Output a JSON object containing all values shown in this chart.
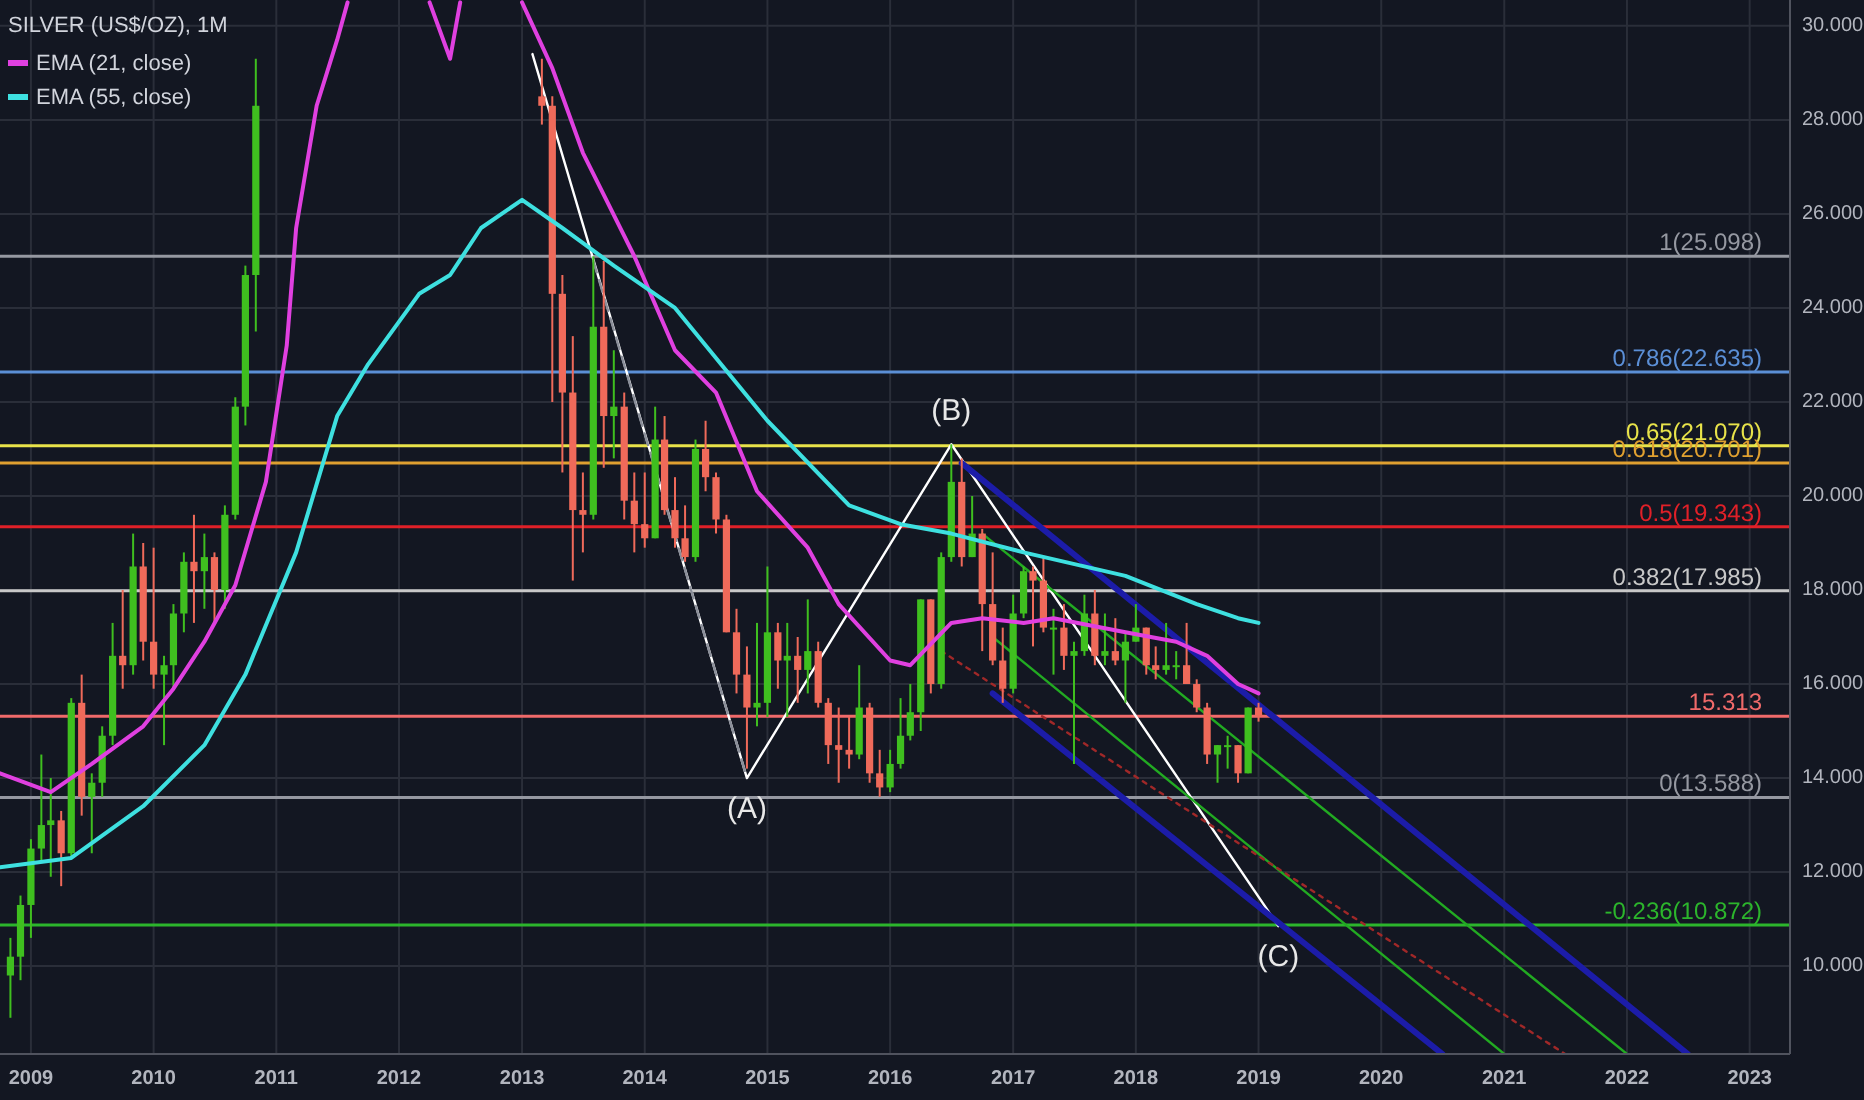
{
  "chart_data": {
    "type": "candlestick",
    "title": "SILVER (US$/OZ), 1M",
    "legend": "top left",
    "grid": true,
    "x": [
      "2008-11",
      "2008-12",
      "2009-01",
      "2009-02",
      "2009-03",
      "2009-04",
      "2009-05",
      "2009-06",
      "2009-07",
      "2009-08",
      "2009-09",
      "2009-10",
      "2009-11",
      "2009-12",
      "2010-01",
      "2010-02",
      "2010-03",
      "2010-04",
      "2010-05",
      "2010-06",
      "2010-07",
      "2010-08",
      "2010-09",
      "2010-10",
      "2010-11",
      "2013-03",
      "2013-04",
      "2013-05",
      "2013-06",
      "2013-07",
      "2013-08",
      "2013-09",
      "2013-10",
      "2013-11",
      "2013-12",
      "2014-01",
      "2014-02",
      "2014-03",
      "2014-04",
      "2014-05",
      "2014-06",
      "2014-07",
      "2014-08",
      "2014-09",
      "2014-10",
      "2014-11",
      "2014-12",
      "2015-01",
      "2015-02",
      "2015-03",
      "2015-04",
      "2015-05",
      "2015-06",
      "2015-07",
      "2015-08",
      "2015-09",
      "2015-10",
      "2015-11",
      "2015-12",
      "2016-01",
      "2016-02",
      "2016-03",
      "2016-04",
      "2016-05",
      "2016-06",
      "2016-07",
      "2016-08",
      "2016-09",
      "2016-10",
      "2016-11",
      "2016-12",
      "2017-01",
      "2017-02",
      "2017-03",
      "2017-04",
      "2017-05",
      "2017-06",
      "2017-07",
      "2017-08",
      "2017-09",
      "2017-10",
      "2017-11",
      "2017-12",
      "2018-01",
      "2018-02",
      "2018-03",
      "2018-04",
      "2018-05",
      "2018-06",
      "2018-07",
      "2018-08",
      "2018-09",
      "2018-10",
      "2018-11",
      "2018-12",
      "2019-01"
    ],
    "ohlc": [
      [
        9.8,
        10.6,
        8.9,
        10.2
      ],
      [
        10.2,
        11.5,
        9.7,
        11.3
      ],
      [
        11.3,
        12.7,
        10.6,
        12.5
      ],
      [
        12.5,
        14.5,
        12.2,
        13.0
      ],
      [
        13.0,
        14.0,
        11.9,
        13.1
      ],
      [
        13.1,
        13.3,
        11.7,
        12.4
      ],
      [
        12.4,
        15.7,
        12.3,
        15.6
      ],
      [
        15.6,
        16.2,
        13.2,
        13.6
      ],
      [
        13.6,
        14.1,
        12.4,
        13.9
      ],
      [
        13.9,
        15.1,
        13.6,
        14.9
      ],
      [
        14.9,
        17.3,
        14.7,
        16.6
      ],
      [
        16.6,
        18.0,
        15.9,
        16.4
      ],
      [
        16.4,
        19.2,
        16.2,
        18.5
      ],
      [
        18.5,
        19.0,
        16.5,
        16.9
      ],
      [
        16.9,
        18.9,
        15.9,
        16.2
      ],
      [
        16.2,
        16.6,
        14.7,
        16.4
      ],
      [
        16.4,
        17.7,
        15.9,
        17.5
      ],
      [
        17.5,
        18.8,
        17.1,
        18.6
      ],
      [
        18.6,
        19.6,
        17.3,
        18.4
      ],
      [
        18.4,
        19.2,
        17.6,
        18.7
      ],
      [
        18.7,
        18.8,
        17.3,
        18.0
      ],
      [
        18.0,
        19.8,
        17.6,
        19.6
      ],
      [
        19.6,
        22.1,
        19.5,
        21.9
      ],
      [
        21.9,
        24.9,
        21.5,
        24.7
      ],
      [
        24.7,
        29.3,
        23.5,
        28.3
      ],
      [
        28.5,
        29.3,
        27.9,
        28.3
      ],
      [
        28.3,
        28.5,
        22.0,
        24.3
      ],
      [
        24.3,
        24.7,
        20.5,
        22.2
      ],
      [
        22.2,
        23.4,
        18.2,
        19.7
      ],
      [
        19.7,
        20.5,
        18.8,
        19.6
      ],
      [
        19.6,
        25.1,
        19.5,
        23.6
      ],
      [
        23.6,
        25.0,
        20.6,
        21.7
      ],
      [
        21.7,
        23.1,
        20.8,
        21.9
      ],
      [
        21.9,
        22.2,
        19.5,
        19.9
      ],
      [
        19.9,
        20.5,
        18.8,
        19.4
      ],
      [
        19.4,
        20.5,
        18.9,
        19.1
      ],
      [
        19.1,
        21.9,
        19.1,
        21.2
      ],
      [
        21.2,
        21.7,
        19.6,
        19.7
      ],
      [
        19.7,
        20.4,
        18.9,
        19.1
      ],
      [
        19.1,
        19.8,
        18.6,
        18.7
      ],
      [
        18.7,
        21.2,
        18.6,
        21.0
      ],
      [
        21.0,
        21.6,
        20.1,
        20.4
      ],
      [
        20.4,
        20.5,
        19.2,
        19.5
      ],
      [
        19.5,
        19.6,
        17.1,
        17.1
      ],
      [
        17.1,
        17.6,
        15.8,
        16.2
      ],
      [
        16.2,
        16.8,
        14.2,
        15.5
      ],
      [
        15.5,
        17.3,
        15.1,
        15.6
      ],
      [
        15.6,
        18.5,
        15.3,
        17.1
      ],
      [
        17.1,
        17.3,
        15.9,
        16.5
      ],
      [
        16.5,
        17.3,
        15.3,
        16.6
      ],
      [
        16.6,
        17.0,
        15.6,
        16.3
      ],
      [
        16.3,
        17.8,
        15.8,
        16.7
      ],
      [
        16.7,
        16.9,
        15.5,
        15.6
      ],
      [
        15.6,
        15.7,
        14.3,
        14.7
      ],
      [
        14.7,
        15.5,
        13.9,
        14.6
      ],
      [
        14.6,
        15.3,
        14.2,
        14.5
      ],
      [
        14.5,
        16.4,
        14.4,
        15.5
      ],
      [
        15.5,
        15.6,
        13.9,
        14.1
      ],
      [
        14.1,
        14.6,
        13.6,
        13.8
      ],
      [
        13.8,
        14.6,
        13.7,
        14.3
      ],
      [
        14.3,
        15.7,
        14.2,
        14.9
      ],
      [
        14.9,
        16.0,
        14.8,
        15.4
      ],
      [
        15.4,
        17.8,
        15.0,
        17.8
      ],
      [
        17.8,
        17.8,
        15.8,
        16.0
      ],
      [
        16.0,
        18.8,
        15.9,
        18.7
      ],
      [
        18.7,
        21.1,
        18.6,
        20.3
      ],
      [
        20.3,
        20.8,
        18.5,
        18.7
      ],
      [
        18.7,
        20.0,
        18.7,
        19.2
      ],
      [
        19.2,
        19.3,
        16.7,
        17.7
      ],
      [
        17.7,
        18.8,
        16.4,
        16.5
      ],
      [
        16.5,
        17.2,
        15.6,
        15.9
      ],
      [
        15.9,
        17.9,
        15.8,
        17.5
      ],
      [
        17.5,
        18.5,
        17.4,
        18.4
      ],
      [
        18.4,
        18.5,
        16.8,
        18.2
      ],
      [
        18.2,
        18.7,
        17.1,
        17.2
      ],
      [
        17.2,
        17.6,
        16.2,
        17.2
      ],
      [
        17.2,
        17.7,
        16.3,
        16.6
      ],
      [
        16.6,
        16.9,
        14.3,
        16.7
      ],
      [
        16.7,
        17.9,
        16.6,
        17.5
      ],
      [
        17.5,
        18.0,
        16.4,
        16.6
      ],
      [
        16.6,
        17.5,
        16.4,
        16.7
      ],
      [
        16.7,
        17.4,
        16.4,
        16.5
      ],
      [
        16.5,
        17.1,
        15.6,
        16.9
      ],
      [
        16.9,
        17.7,
        16.9,
        17.2
      ],
      [
        17.2,
        17.2,
        16.2,
        16.4
      ],
      [
        16.4,
        16.8,
        16.1,
        16.3
      ],
      [
        16.3,
        17.3,
        16.2,
        16.4
      ],
      [
        16.4,
        16.7,
        16.1,
        16.4
      ],
      [
        16.4,
        17.3,
        16.0,
        16.0
      ],
      [
        16.0,
        16.1,
        15.4,
        15.5
      ],
      [
        15.5,
        15.6,
        14.3,
        14.5
      ],
      [
        14.5,
        14.7,
        13.9,
        14.7
      ],
      [
        14.7,
        14.9,
        14.2,
        14.7
      ],
      [
        14.7,
        14.7,
        13.9,
        14.1
      ],
      [
        14.1,
        15.5,
        14.1,
        15.5
      ],
      [
        15.5,
        15.6,
        15.2,
        15.313
      ]
    ],
    "colors": [
      "#3fbf1f",
      "#3fbf1f",
      "#3fbf1f",
      "#3fbf1f",
      "#3fbf1f",
      "#ef6a5a",
      "#3fbf1f",
      "#ef6a5a",
      "#3fbf1f",
      "#3fbf1f",
      "#3fbf1f",
      "#ef6a5a",
      "#3fbf1f",
      "#ef6a5a",
      "#ef6a5a",
      "#3fbf1f",
      "#3fbf1f",
      "#3fbf1f",
      "#ef6a5a",
      "#3fbf1f",
      "#ef6a5a",
      "#3fbf1f",
      "#3fbf1f",
      "#3fbf1f",
      "#3fbf1f",
      "#ef6a5a",
      "#ef6a5a",
      "#ef6a5a",
      "#ef6a5a",
      "#ef6a5a",
      "#3fbf1f",
      "#ef6a5a",
      "#3fbf1f",
      "#ef6a5a",
      "#ef6a5a",
      "#ef6a5a",
      "#3fbf1f",
      "#ef6a5a",
      "#ef6a5a",
      "#ef6a5a",
      "#3fbf1f",
      "#ef6a5a",
      "#ef6a5a",
      "#ef6a5a",
      "#ef6a5a",
      "#ef6a5a",
      "#3fbf1f",
      "#3fbf1f",
      "#ef6a5a",
      "#3fbf1f",
      "#ef6a5a",
      "#3fbf1f",
      "#ef6a5a",
      "#ef6a5a",
      "#ef6a5a",
      "#ef6a5a",
      "#3fbf1f",
      "#ef6a5a",
      "#ef6a5a",
      "#3fbf1f",
      "#3fbf1f",
      "#3fbf1f",
      "#3fbf1f",
      "#ef6a5a",
      "#3fbf1f",
      "#3fbf1f",
      "#ef6a5a",
      "#3fbf1f",
      "#ef6a5a",
      "#ef6a5a",
      "#ef6a5a",
      "#3fbf1f",
      "#3fbf1f",
      "#ef6a5a",
      "#ef6a5a",
      "#3fbf1f",
      "#ef6a5a",
      "#3fbf1f",
      "#3fbf1f",
      "#ef6a5a",
      "#3fbf1f",
      "#ef6a5a",
      "#3fbf1f",
      "#3fbf1f",
      "#ef6a5a",
      "#ef6a5a",
      "#3fbf1f",
      "#3fbf1f",
      "#ef6a5a",
      "#ef6a5a",
      "#ef6a5a",
      "#3fbf1f",
      "#3fbf1f",
      "#ef6a5a",
      "#3fbf1f",
      "#ef6a5a"
    ],
    "series": [
      {
        "name": "EMA (21, close)",
        "type": "line",
        "color": "#e040e0",
        "x": [
          "2008-10",
          "2009-03",
          "2009-07",
          "2009-12",
          "2010-03",
          "2010-06",
          "2010-09",
          "2010-12",
          "2011-02",
          "2011-03",
          "2011-05",
          "2011-07",
          "2011-08",
          "2011-09",
          "2012-03",
          "2012-04",
          "2012-06",
          "2012-07",
          "2012-08",
          "2012-12",
          "2013-01",
          "2013-04",
          "2013-07",
          "2013-12",
          "2014-04",
          "2014-08",
          "2014-12",
          "2015-05",
          "2015-08",
          "2016-01",
          "2016-03",
          "2016-07",
          "2016-10",
          "2017-02",
          "2017-05",
          "2017-12",
          "2018-05",
          "2018-08",
          "2018-11",
          "2019-01"
        ],
        "values": [
          14.1,
          13.7,
          14.3,
          15.1,
          15.9,
          16.9,
          18.1,
          20.3,
          23.2,
          25.7,
          28.3,
          29.7,
          30.5,
          null,
          null,
          30.5,
          29.3,
          30.5,
          null,
          null,
          30.5,
          29.1,
          27.3,
          25.1,
          23.1,
          22.2,
          20.1,
          18.9,
          17.7,
          16.5,
          16.4,
          17.3,
          17.4,
          17.3,
          17.4,
          17.1,
          16.9,
          16.6,
          16.0,
          15.8
        ]
      },
      {
        "name": "EMA (55, close)",
        "type": "line",
        "color": "#3ee0e0",
        "x": [
          "2008-10",
          "2009-05",
          "2009-12",
          "2010-06",
          "2010-10",
          "2011-03",
          "2011-07",
          "2011-10",
          "2012-03",
          "2012-06",
          "2012-09",
          "2013-01",
          "2013-05",
          "2013-10",
          "2014-04",
          "2015-01",
          "2015-09",
          "2016-02",
          "2016-07",
          "2017-02",
          "2017-12",
          "2018-07",
          "2018-11",
          "2019-01"
        ],
        "values": [
          12.1,
          12.3,
          13.4,
          14.7,
          16.2,
          18.8,
          21.7,
          22.8,
          24.3,
          24.7,
          25.7,
          26.3,
          25.7,
          24.9,
          24.0,
          21.6,
          19.8,
          19.4,
          19.2,
          18.8,
          18.3,
          17.7,
          17.4,
          17.3
        ]
      },
      {
        "type": "line",
        "color": "#ffffff",
        "x": [
          "2013-02",
          "2014-11",
          "2016-07",
          "2019-03"
        ],
        "values": [
          29.4,
          14.0,
          21.1,
          10.85
        ]
      },
      {
        "type": "line",
        "color": "#8a8e99",
        "line_style": "dashed",
        "x": [
          "2013-08",
          "2014-11"
        ],
        "values": [
          25.0,
          14.0
        ]
      },
      {
        "type": "line",
        "color": "#1c1ca8",
        "x": [
          "2016-08",
          "2022-07"
        ],
        "values": [
          20.7,
          8.13
        ]
      },
      {
        "type": "line",
        "color": "#1c1ca8",
        "x": [
          "2016-11",
          "2020-07"
        ],
        "values": [
          15.8,
          8.13
        ]
      },
      {
        "type": "line",
        "color": "#22aa22",
        "x": [
          "2016-10",
          "2022-01"
        ],
        "values": [
          19.2,
          8.13
        ]
      },
      {
        "type": "line",
        "color": "#22aa22",
        "x": [
          "2016-11",
          "2021-01"
        ],
        "values": [
          17.0,
          8.13
        ]
      },
      {
        "type": "line",
        "color": "#a02828",
        "line_style": "dotted",
        "x": [
          "2016-06",
          "2021-07"
        ],
        "values": [
          16.7,
          8.13
        ]
      }
    ],
    "ref_lines": [
      {
        "axis": "y",
        "value": 25.098,
        "label": "1(25.098)",
        "color": "#9598a1"
      },
      {
        "axis": "y",
        "value": 22.635,
        "label": "0.786(22.635)",
        "color": "#5b8fd6"
      },
      {
        "axis": "y",
        "value": 21.07,
        "label": "0.65(21.070)",
        "color": "#e8e34a"
      },
      {
        "axis": "y",
        "value": 20.701,
        "label": "0.618(20.701)",
        "color": "#e0a030"
      },
      {
        "axis": "y",
        "value": 19.343,
        "label": "0.5(19.343)",
        "color": "#e02028"
      },
      {
        "axis": "y",
        "value": 17.985,
        "label": "0.382(17.985)",
        "color": "#c8c8c8"
      },
      {
        "axis": "y",
        "value": 15.313,
        "label": "15.313",
        "color": "#f06a6a"
      },
      {
        "axis": "y",
        "value": 13.588,
        "label": "0(13.588)",
        "color": "#9598a1"
      },
      {
        "axis": "y",
        "value": 10.872,
        "label": "-0.236(10.872)",
        "color": "#2cb52c"
      }
    ],
    "annotations": [
      {
        "text": "(A)",
        "x": "2014-11",
        "y": 14.0
      },
      {
        "text": "(B)",
        "x": "2016-07",
        "y": 21.1
      },
      {
        "text": "(C)",
        "x": "2019-03",
        "y": 10.85
      }
    ],
    "xlim": [
      "2008-10",
      "2023-05"
    ],
    "xticks": [
      {
        "value": "2009",
        "label": "2009"
      },
      {
        "value": "2010",
        "label": "2010"
      },
      {
        "value": "2011",
        "label": "2011"
      },
      {
        "value": "2012",
        "label": "2012"
      },
      {
        "value": "2013",
        "label": "2013"
      },
      {
        "value": "2014",
        "label": "2014"
      },
      {
        "value": "2015",
        "label": "2015"
      },
      {
        "value": "2016",
        "label": "2016"
      },
      {
        "value": "2017",
        "label": "2017"
      },
      {
        "value": "2018",
        "label": "2018"
      },
      {
        "value": "2019",
        "label": "2019"
      },
      {
        "value": "2020",
        "label": "2020"
      },
      {
        "value": "2021",
        "label": "2021"
      },
      {
        "value": "2022",
        "label": "2022"
      },
      {
        "value": "2023",
        "label": "2023"
      }
    ],
    "ylim": [
      8.13,
      30.55
    ],
    "yticks": [
      {
        "value": 10,
        "label": "10.000"
      },
      {
        "value": 12,
        "label": "12.000"
      },
      {
        "value": 14,
        "label": "14.000"
      },
      {
        "value": 16,
        "label": "16.000"
      },
      {
        "value": 18,
        "label": "18.000"
      },
      {
        "value": 20,
        "label": "20.000"
      },
      {
        "value": 22,
        "label": "22.000"
      },
      {
        "value": 24,
        "label": "24.000"
      },
      {
        "value": 26,
        "label": "26.000"
      },
      {
        "value": 28,
        "label": "28.000"
      },
      {
        "value": 30,
        "label": "30.000"
      }
    ]
  }
}
